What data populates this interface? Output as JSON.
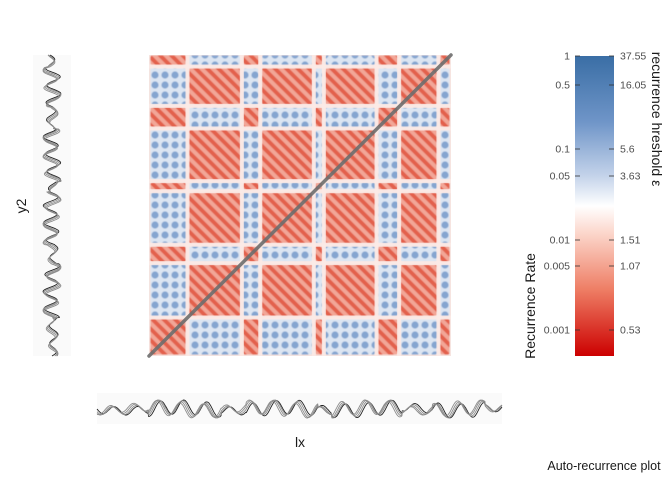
{
  "chart_data": {
    "type": "heatmap",
    "subtype": "auto-recurrence plot",
    "caption": "Auto-recurrence plot",
    "x_series_label": "lx",
    "y_series_label": "y2",
    "matrix_symmetric": true,
    "main_diagonal": "line of identity (dark grey)",
    "colorbar": {
      "left_title": "Recurrence Rate",
      "right_title": "recurrence hreshold ε",
      "rate_ticks": [
        "1",
        "0.5",
        "0.1",
        "0.05",
        "0.01",
        "0.005",
        "0.001"
      ],
      "threshold_ticks": [
        "37.55",
        "16.05",
        "5.6",
        "3.63",
        "1.51",
        "1.07",
        "0.53"
      ],
      "pairs": [
        {
          "rate": 1,
          "threshold": 37.55
        },
        {
          "rate": 0.5,
          "threshold": 16.05
        },
        {
          "rate": 0.1,
          "threshold": 5.6
        },
        {
          "rate": 0.05,
          "threshold": 3.63
        },
        {
          "rate": 0.01,
          "threshold": 1.51
        },
        {
          "rate": 0.005,
          "threshold": 1.07
        },
        {
          "rate": 0.001,
          "threshold": 0.53
        }
      ],
      "scale": "log",
      "colors": {
        "high": "#3a6ea5",
        "mid": "#ffffff",
        "low": "#cc0000"
      }
    },
    "series_segments": [
      "low",
      "high",
      "low",
      "high",
      "low",
      "high",
      "low",
      "high",
      "low"
    ],
    "colors": {
      "high_block": "#7fa2d0",
      "low_block": "#e8735f",
      "diagonal": "#6e6e6e",
      "trace": "#1a1a1a"
    },
    "grid": false,
    "legend_position": "right"
  }
}
